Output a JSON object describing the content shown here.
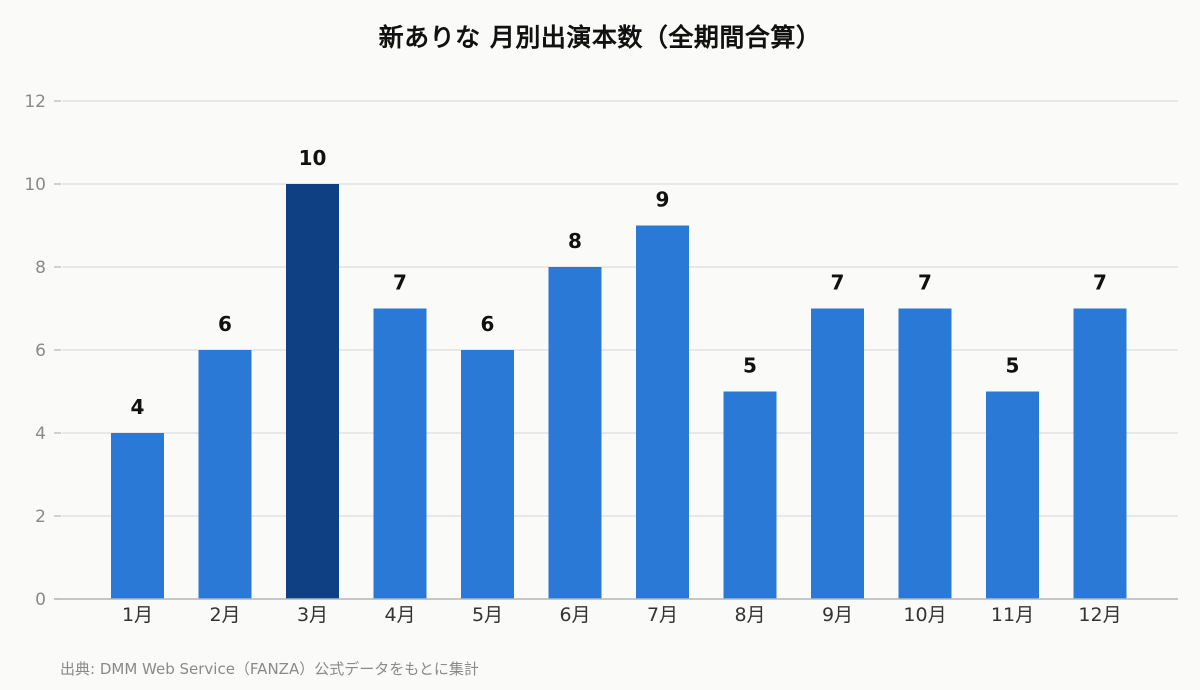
{
  "chart_data": {
    "type": "bar",
    "title": "新ありな 月別出演本数（全期間合算）",
    "categories": [
      "1月",
      "2月",
      "3月",
      "4月",
      "5月",
      "6月",
      "7月",
      "8月",
      "9月",
      "10月",
      "11月",
      "12月"
    ],
    "values": [
      4,
      6,
      10,
      7,
      6,
      8,
      9,
      5,
      7,
      7,
      5,
      7
    ],
    "data_labels": [
      "4",
      "6",
      "10",
      "7",
      "6",
      "8",
      "9",
      "5",
      "7",
      "7",
      "5",
      "7"
    ],
    "highlight_category": "3月",
    "ylim": [
      0,
      12
    ],
    "yticks": [
      0,
      2,
      4,
      6,
      8,
      10,
      12
    ],
    "ytick_labels": [
      "0",
      "2",
      "4",
      "6",
      "8",
      "10",
      "12"
    ],
    "xlabel": "",
    "ylabel": "",
    "grid": true,
    "legend": "none",
    "colors": {
      "bar": "#2a79d6",
      "highlight": "#0f4083",
      "grid": "#dddddd",
      "axis": "#b5b5b5",
      "tick_text": "#8a8a8a",
      "x_label_text": "#333333",
      "value_text": "#111111"
    }
  },
  "source_note": "出典: DMM Web Service（FANZA）公式データをもとに集計"
}
